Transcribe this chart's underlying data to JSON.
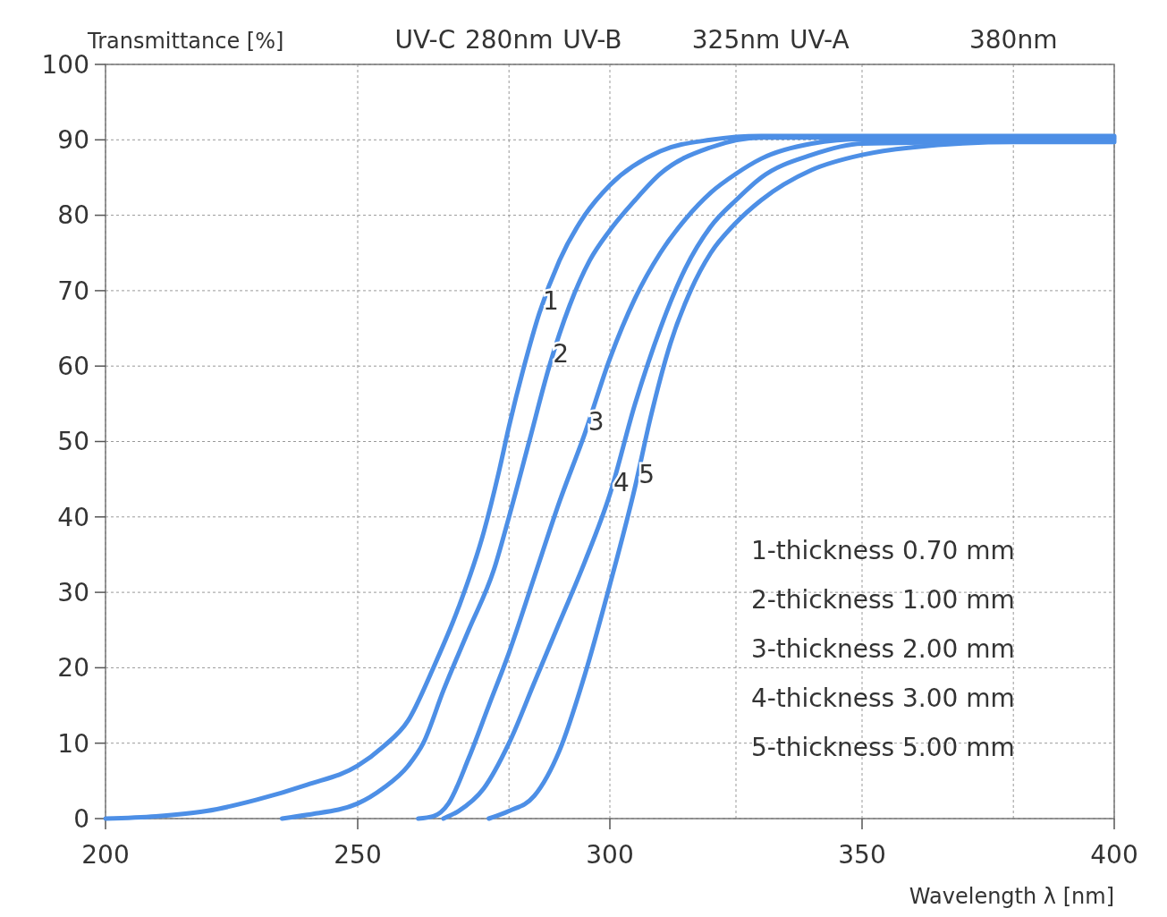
{
  "chart_data": {
    "type": "line",
    "xlabel": "Wavelength λ [nm]",
    "ylabel": "Transmittance [%]",
    "xlim": [
      200,
      400
    ],
    "xticks": [
      200,
      250,
      300,
      350,
      400
    ],
    "x2lim": [
      200,
      400
    ],
    "x2ticks": [
      {
        "value": 280,
        "label": "280nm"
      },
      {
        "value": 325,
        "label": "325nm"
      },
      {
        "value": 380,
        "label": "380nm"
      }
    ],
    "ylim": [
      0,
      100
    ],
    "yticks": [
      0,
      10,
      20,
      30,
      40,
      50,
      60,
      70,
      80,
      90,
      100
    ],
    "grid": true,
    "line_style": "solid",
    "series": [
      {
        "name": "1",
        "color": "#4d8fe6",
        "x": [
          200,
          210,
          220,
          230,
          240,
          250,
          255,
          260,
          265,
          270,
          275,
          278,
          280,
          283,
          286,
          290,
          295,
          300,
          310,
          320,
          330,
          340,
          400
        ],
        "values": [
          0,
          0.3,
          1,
          2.5,
          4.5,
          7,
          9.5,
          13,
          20,
          28,
          38,
          46,
          52,
          60,
          67,
          74,
          80,
          84,
          88.5,
          90,
          90.5,
          90.5,
          90.5
        ]
      },
      {
        "name": "2",
        "color": "#4d8fe6",
        "x": [
          235,
          240,
          250,
          255,
          260,
          263,
          267,
          272,
          277,
          280,
          284,
          288,
          292,
          296,
          300,
          305,
          310,
          320,
          330,
          400
        ],
        "values": [
          0,
          0.5,
          2,
          4,
          7,
          10,
          17,
          25,
          33,
          40,
          50,
          60,
          68,
          74,
          78,
          82,
          85.5,
          89,
          90.3,
          90.3
        ]
      },
      {
        "name": "3",
        "color": "#4d8fe6",
        "x": [
          262,
          265,
          268,
          272,
          276,
          280,
          285,
          290,
          295,
          300,
          305,
          310,
          315,
          320,
          325,
          330,
          340,
          350,
          400
        ],
        "values": [
          0,
          0.3,
          2,
          8,
          15,
          22,
          32,
          42,
          51,
          61,
          69,
          75,
          79.5,
          83,
          85.5,
          87.5,
          89.5,
          90.1,
          90.1
        ]
      },
      {
        "name": "4",
        "color": "#4d8fe6",
        "x": [
          267,
          270,
          275,
          280,
          285,
          290,
          295,
          300,
          305,
          310,
          315,
          320,
          325,
          330,
          340,
          350,
          400
        ],
        "values": [
          0,
          1,
          4,
          10,
          18,
          26,
          34,
          43,
          55,
          65,
          73,
          78.5,
          82,
          85,
          88,
          89.5,
          89.9
        ]
      },
      {
        "name": "5",
        "color": "#4d8fe6",
        "x": [
          276,
          280,
          285,
          290,
          295,
          300,
          305,
          308,
          312,
          316,
          320,
          325,
          330,
          340,
          350,
          360,
          380,
          400
        ],
        "values": [
          0,
          1,
          3,
          9,
          19,
          31,
          44,
          53,
          63,
          70,
          75,
          79,
          82,
          86,
          88,
          89,
          89.7,
          89.7
        ]
      }
    ],
    "annotations": [
      "UV-C",
      "UV-B",
      "UV-A",
      "1-thickness 0.70 mm",
      "2-thickness 1.00 mm",
      "3-thickness 2.00 mm",
      "4-thickness 3.00 mm",
      "5-thickness 5.00 mm"
    ]
  }
}
